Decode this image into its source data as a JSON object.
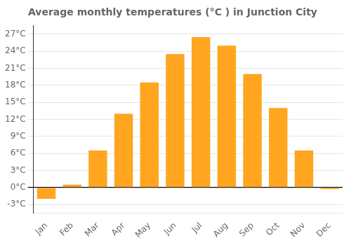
{
  "chart_data": {
    "type": "bar",
    "title": "Average monthly temperatures (°C ) in Junction City",
    "categories": [
      "Jan",
      "Feb",
      "Mar",
      "Apr",
      "May",
      "Jun",
      "Jul",
      "Aug",
      "Sep",
      "Oct",
      "Nov",
      "Dec"
    ],
    "values": [
      -2.0,
      0.5,
      6.5,
      13.0,
      18.5,
      23.5,
      26.5,
      25.0,
      20.0,
      14.0,
      6.5,
      -0.3
    ],
    "color": "#FFA520",
    "ylim": [
      -4.5,
      28.5
    ],
    "yticks": [
      {
        "value": -3,
        "label": "-3°C"
      },
      {
        "value": 0,
        "label": "0°C"
      },
      {
        "value": 3,
        "label": "3°C"
      },
      {
        "value": 6,
        "label": "6°C"
      },
      {
        "value": 9,
        "label": "9°C"
      },
      {
        "value": 12,
        "label": "12°C"
      },
      {
        "value": 15,
        "label": "15°C"
      },
      {
        "value": 18,
        "label": "18°C"
      },
      {
        "value": 21,
        "label": "21°C"
      },
      {
        "value": 24,
        "label": "24°C"
      },
      {
        "value": 27,
        "label": "27°C"
      }
    ],
    "grid": true
  }
}
